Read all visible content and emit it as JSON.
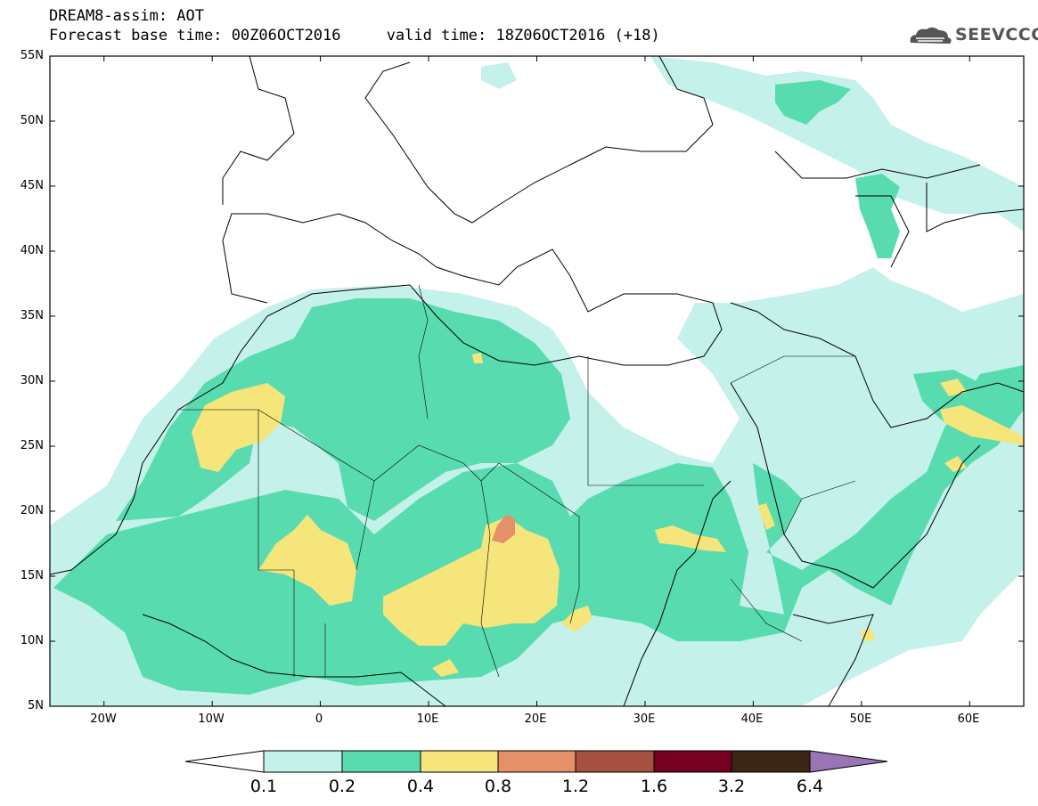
{
  "header": {
    "title_line1": "DREAM8-assim: AOT",
    "title_line2": "Forecast base time: 00Z06OCT2016     valid time: 18Z06OCT2016 (+18)",
    "logo_text": "SEEVCCC",
    "logo_icon": "cloud-logo-icon"
  },
  "map": {
    "lat_labels": [
      "55N",
      "50N",
      "45N",
      "40N",
      "35N",
      "30N",
      "25N",
      "20N",
      "15N",
      "10N",
      "5N"
    ],
    "lon_labels": [
      "20W",
      "10W",
      "0",
      "10E",
      "20E",
      "30E",
      "40E",
      "50E",
      "60E"
    ],
    "lon_range": [
      -25,
      65
    ],
    "lat_range": [
      5,
      55
    ]
  },
  "legend": {
    "labels": [
      "0.1",
      "0.2",
      "0.4",
      "0.8",
      "1.2",
      "1.6",
      "3.2",
      "6.4"
    ],
    "colors": [
      "#ffffff",
      "#c4f1ea",
      "#59dbb0",
      "#f5e57a",
      "#e6906a",
      "#a55040",
      "#76001f",
      "#3a2614",
      "#9a74b5"
    ]
  }
}
